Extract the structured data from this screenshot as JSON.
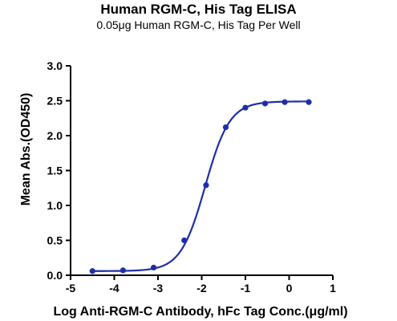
{
  "chart_data": {
    "type": "line",
    "title": "Human RGM-C, His Tag ELISA",
    "subtitle": "0.05μg Human RGM-C, His Tag Per Well",
    "xlabel": "Log Anti-RGM-C Antibody, hFc Tag Conc.(μg/ml)",
    "ylabel": "Mean Abs.(OD450)",
    "xlim": [
      -5,
      1
    ],
    "ylim": [
      0,
      3.0
    ],
    "xticks": [
      "-5",
      "-4",
      "-3",
      "-2",
      "-1",
      "0",
      "1"
    ],
    "yticks": [
      "0.0",
      "0.5",
      "1.0",
      "1.5",
      "2.0",
      "2.5",
      "3.0"
    ],
    "series": [
      {
        "color": "#1f2ea8",
        "x": [
          -4.5,
          -3.8,
          -3.1,
          -2.4,
          -1.9,
          -1.45,
          -1.0,
          -0.55,
          -0.1,
          0.45
        ],
        "y": [
          0.06,
          0.07,
          0.11,
          0.5,
          1.29,
          2.12,
          2.4,
          2.46,
          2.48,
          2.48
        ]
      }
    ],
    "fit": {
      "bottom": 0.06,
      "top": 2.49,
      "logEC50": -1.92,
      "hill": 1.55
    },
    "grid": false,
    "legend": "none"
  }
}
